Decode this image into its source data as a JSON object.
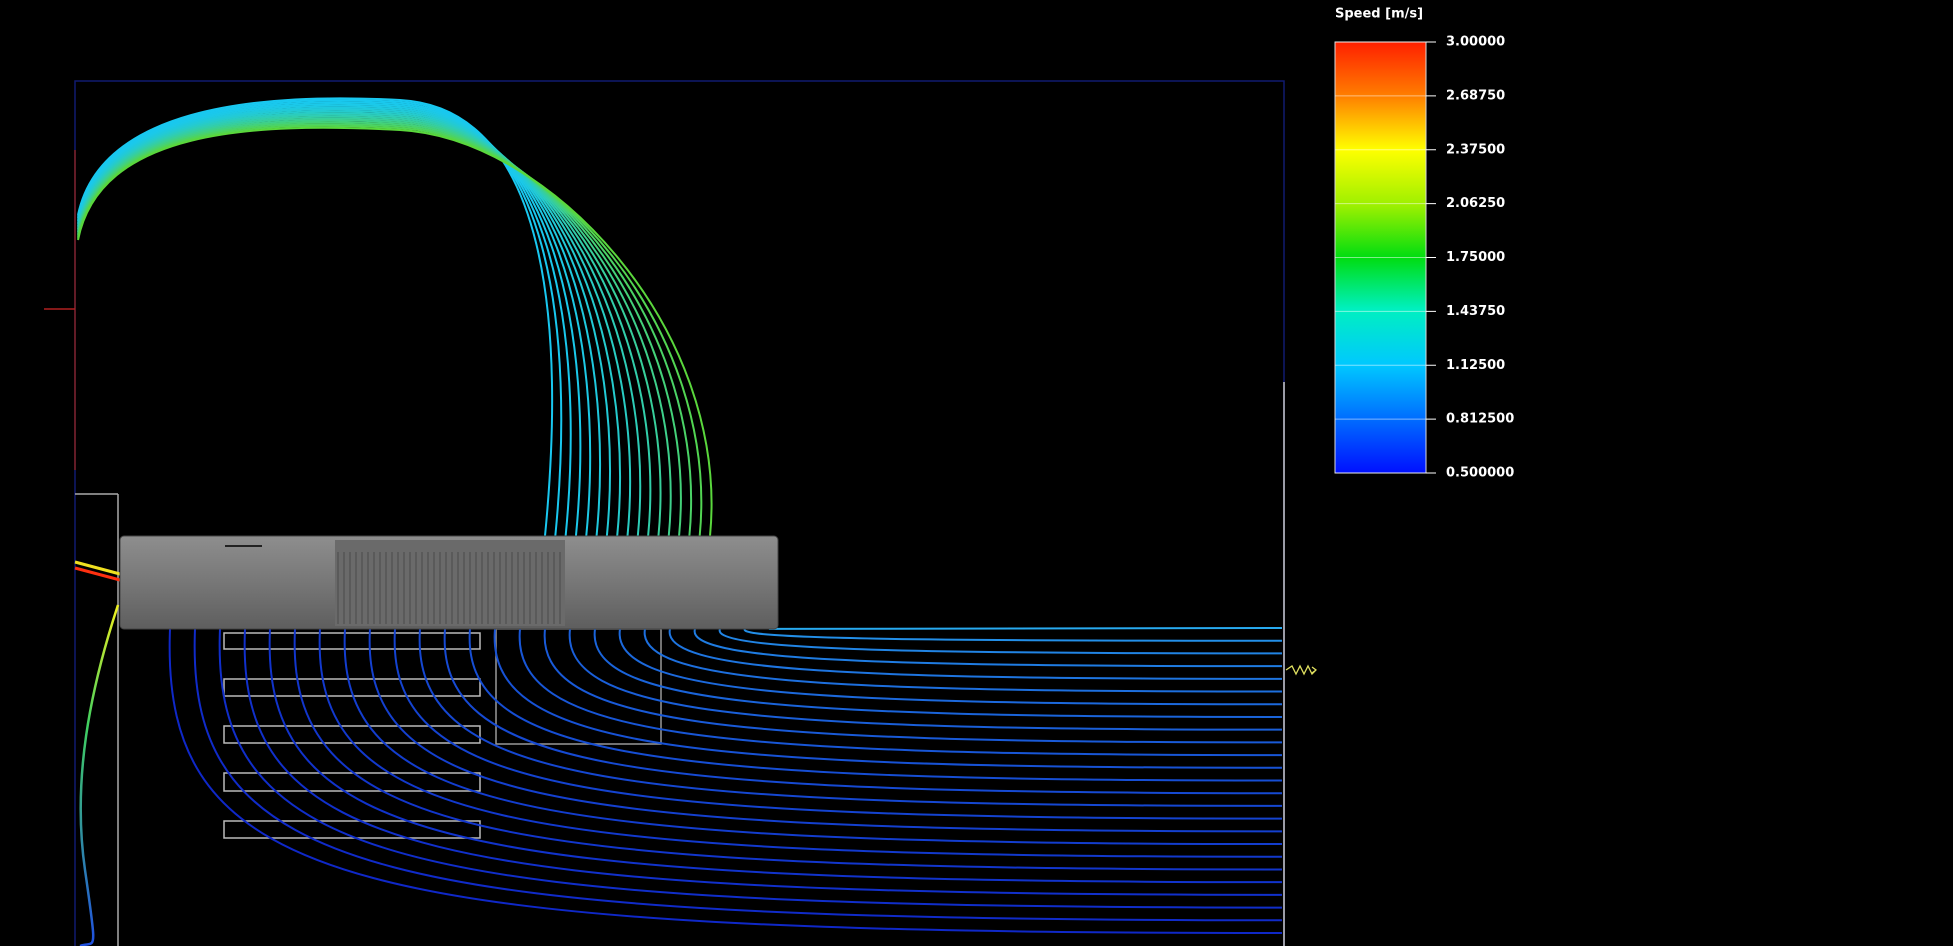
{
  "legend": {
    "title": "Speed [m/s]",
    "ticks": [
      "3.00000",
      "2.68750",
      "2.37500",
      "2.06250",
      "1.75000",
      "1.43750",
      "1.12500",
      "0.812500",
      "0.500000"
    ]
  }
}
